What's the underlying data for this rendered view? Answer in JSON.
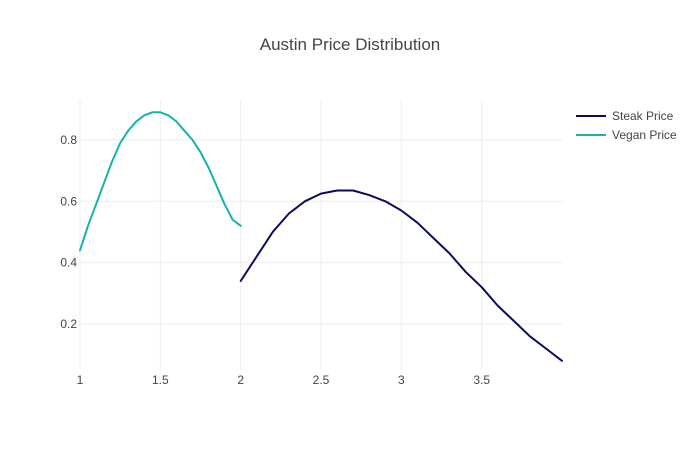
{
  "chart_data": {
    "type": "line",
    "title": "Austin Price Distribution",
    "xlabel": "",
    "ylabel": "",
    "xlim": [
      1,
      4
    ],
    "ylim": [
      0.05,
      0.93
    ],
    "x_ticks": [
      1,
      1.5,
      2,
      2.5,
      3,
      3.5
    ],
    "x_tick_labels": [
      "1",
      "1.5",
      "2",
      "2.5",
      "3",
      "3.5"
    ],
    "y_ticks": [
      0.2,
      0.4,
      0.6,
      0.8
    ],
    "y_tick_labels": [
      "0.2",
      "0.4",
      "0.6",
      "0.8"
    ],
    "grid": true,
    "legend_placement": "top-right",
    "series": [
      {
        "name": "Steak Price",
        "color": "#0a0a5e",
        "x": [
          2.0,
          2.1,
          2.2,
          2.3,
          2.4,
          2.5,
          2.6,
          2.7,
          2.8,
          2.9,
          3.0,
          3.1,
          3.2,
          3.3,
          3.4,
          3.5,
          3.6,
          3.7,
          3.8,
          3.9,
          4.0
        ],
        "y": [
          0.34,
          0.42,
          0.5,
          0.56,
          0.6,
          0.625,
          0.635,
          0.635,
          0.62,
          0.6,
          0.57,
          0.53,
          0.48,
          0.43,
          0.37,
          0.32,
          0.26,
          0.21,
          0.16,
          0.12,
          0.08
        ]
      },
      {
        "name": "Vegan Price",
        "color": "#17b0b0",
        "x": [
          1.0,
          1.05,
          1.1,
          1.15,
          1.2,
          1.25,
          1.3,
          1.35,
          1.4,
          1.45,
          1.5,
          1.55,
          1.6,
          1.65,
          1.7,
          1.75,
          1.8,
          1.85,
          1.9,
          1.95,
          2.0
        ],
        "y": [
          0.44,
          0.52,
          0.59,
          0.66,
          0.73,
          0.79,
          0.83,
          0.86,
          0.88,
          0.89,
          0.89,
          0.88,
          0.86,
          0.83,
          0.8,
          0.76,
          0.71,
          0.65,
          0.59,
          0.54,
          0.52
        ]
      }
    ]
  }
}
